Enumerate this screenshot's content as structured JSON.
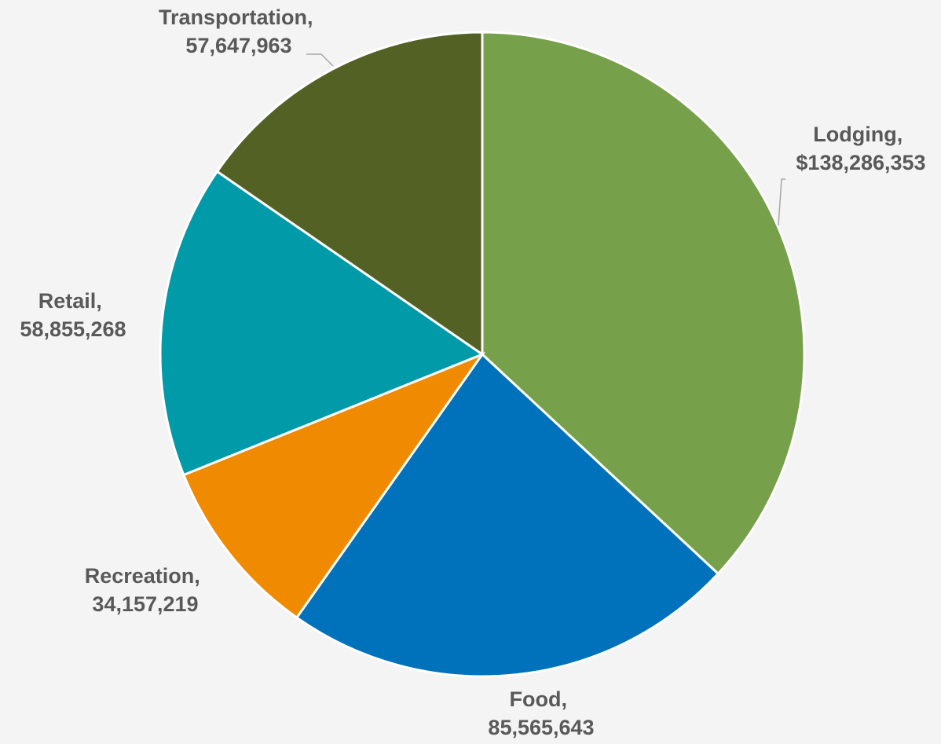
{
  "chart_data": {
    "type": "pie",
    "title": "",
    "legend": "none",
    "start_angle_deg": 0,
    "direction": "clockwise",
    "series": [
      {
        "categories": [
          "Lodging",
          "Food",
          "Recreation",
          "Retail",
          "Transportation"
        ],
        "values": [
          138286353,
          85565643,
          34157219,
          58855268,
          57647963
        ],
        "value_labels": [
          "$138,286,353",
          "85,565,643",
          "34,157,219",
          "58,855,268",
          "57,647,963"
        ],
        "colors": [
          "#77a04a",
          "#0072bc",
          "#f08a00",
          "#009aa8",
          "#536125"
        ]
      }
    ],
    "data_labels": [
      {
        "category": "Lodging,",
        "value": "$138,286,353"
      },
      {
        "category": "Food,",
        "value": "85,565,643"
      },
      {
        "category": "Recreation,",
        "value": "34,157,219"
      },
      {
        "category": "Retail,",
        "value": "58,855,268"
      },
      {
        "category": "Transportation,",
        "value": "57,647,963"
      }
    ]
  }
}
